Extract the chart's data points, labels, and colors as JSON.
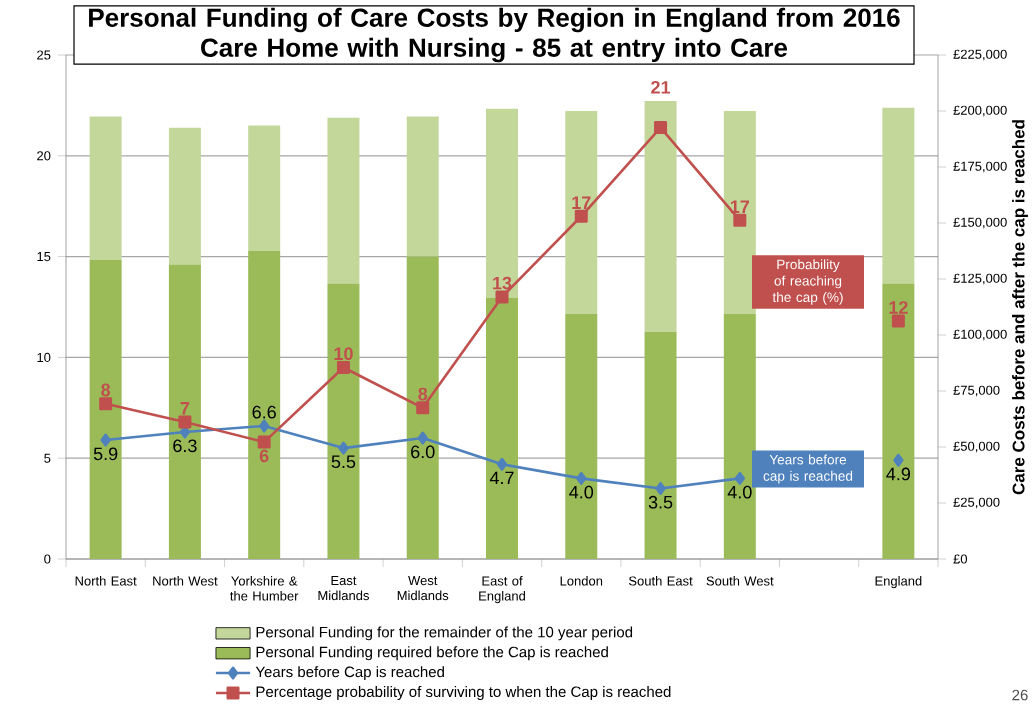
{
  "chart_data": {
    "type": "bar",
    "stacked": true,
    "title": "Personal Funding of Care Costs by Region in England from 2016",
    "subtitle": "Care Home with Nursing - 85 at entry into Care",
    "y2label": "Care Costs before and after the cap is reached",
    "categories": [
      "North East",
      "North West",
      "Yorkshire & the Humber",
      "East Midlands",
      "West Midlands",
      "East of England",
      "London",
      "South East",
      "South West",
      null,
      "England"
    ],
    "series": [
      {
        "name": "Personal Funding required before the Cap is reached",
        "color": "#9bbb59",
        "axis": "y2",
        "values": [
          133500,
          131500,
          137500,
          123000,
          135000,
          116500,
          109500,
          101500,
          109500,
          null,
          123000
        ]
      },
      {
        "name": "Personal Funding for the remainder of the 10 year period",
        "color": "#c4d79b",
        "axis": "y2",
        "values": [
          64000,
          61000,
          56000,
          74000,
          62500,
          84500,
          90500,
          103000,
          90500,
          null,
          78500
        ]
      },
      {
        "name": "Years before Cap is reached",
        "type": "line",
        "color": "#4f81bd",
        "marker": "diamond",
        "values": [
          5.9,
          6.3,
          6.6,
          5.5,
          6.0,
          4.7,
          4.0,
          3.5,
          4.0,
          null,
          4.9
        ],
        "value_labels": [
          "5.9",
          "6.3",
          "6.6",
          "5.5",
          "6.0",
          "4.7",
          "4.0",
          "3.5",
          "4.0",
          null,
          "4.9"
        ]
      },
      {
        "name": "Percentage probability of surviving to when the Cap is reached",
        "type": "line",
        "color": "#c0504d",
        "marker": "square",
        "values": [
          7.7,
          6.8,
          5.8,
          9.5,
          7.5,
          13.0,
          17.0,
          21.4,
          16.8,
          null,
          11.8
        ],
        "value_labels": [
          "8",
          "7",
          "6",
          "10",
          "8",
          "13",
          "17",
          "21",
          "17",
          null,
          "12"
        ]
      }
    ],
    "ylim": [
      0,
      25
    ],
    "yticks": [
      0,
      5,
      10,
      15,
      20,
      25
    ],
    "y2lim": [
      0,
      225000
    ],
    "y2ticks": [
      {
        "value": 0,
        "label": "£0"
      },
      {
        "value": 25000,
        "label": "£25,000"
      },
      {
        "value": 50000,
        "label": "£50,000"
      },
      {
        "value": 75000,
        "label": "£75,000"
      },
      {
        "value": 100000,
        "label": "£100,000"
      },
      {
        "value": 125000,
        "label": "£125,000"
      },
      {
        "value": 150000,
        "label": "£150,000"
      },
      {
        "value": 175000,
        "label": "£175,000"
      },
      {
        "value": 200000,
        "label": "£200,000"
      },
      {
        "value": 225000,
        "label": "£225,000"
      }
    ],
    "grid": "y",
    "legend": "bottom",
    "annotations": [
      "Probability of reaching the cap (%)",
      "Years before cap is reached",
      "26"
    ]
  }
}
